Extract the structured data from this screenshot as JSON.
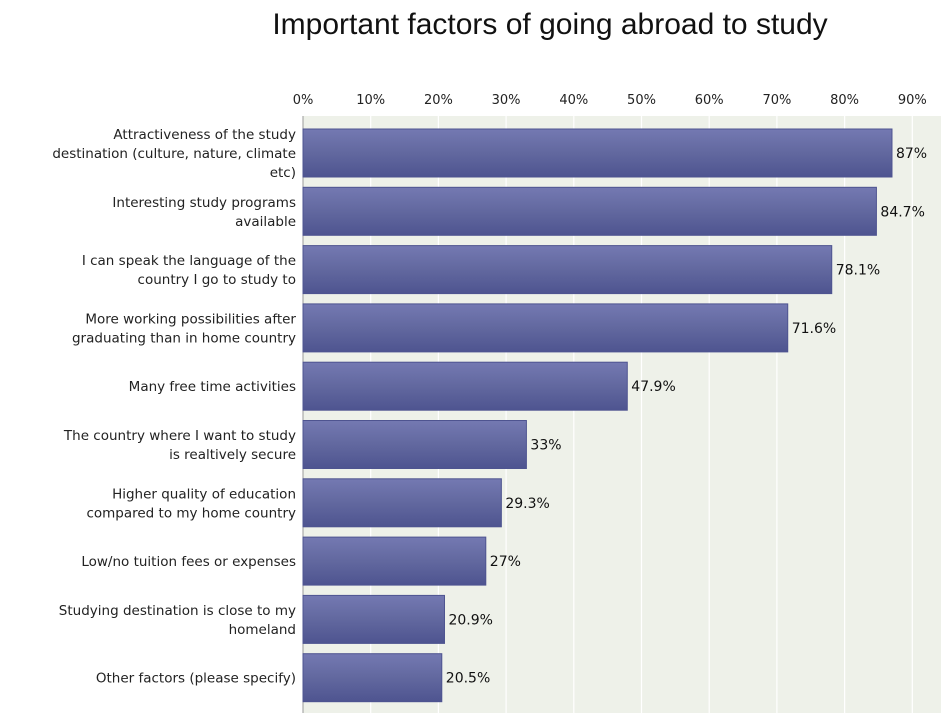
{
  "title": "Important factors of going abroad to study",
  "colors": {
    "bar": "#62689f",
    "bar_light": "#7479b2",
    "bar_dark": "#4e5490",
    "plot_bg": "#eef1e9",
    "grid": "#ffffff",
    "axis": "#9a9a9a"
  },
  "chart_data": {
    "type": "bar",
    "orientation": "horizontal",
    "title": "Important factors of going abroad to study",
    "xlabel": "",
    "ylabel": "",
    "xlim": [
      0,
      93
    ],
    "x_ticks": [
      "0%",
      "10%",
      "20%",
      "30%",
      "40%",
      "50%",
      "60%",
      "70%",
      "80%",
      "90%"
    ],
    "x_tick_values": [
      0,
      10,
      20,
      30,
      40,
      50,
      60,
      70,
      80,
      90
    ],
    "grid": true,
    "categories": [
      [
        "Attractiveness of the study",
        "destination (culture, nature, climate",
        "etc)"
      ],
      [
        "Interesting study programs",
        "available"
      ],
      [
        "I can speak the language of the",
        "country I go to study to"
      ],
      [
        "More working possibilities after",
        "graduating than in home country"
      ],
      [
        "Many free time activities"
      ],
      [
        "The country where I want to study",
        "is realtively secure"
      ],
      [
        "Higher quality of education",
        "compared to my home country"
      ],
      [
        "Low/no tuition fees or expenses"
      ],
      [
        "Studying destination is close to my",
        "homeland"
      ],
      [
        "Other factors (please specify)"
      ]
    ],
    "values": [
      87,
      84.7,
      78.1,
      71.6,
      47.9,
      33,
      29.3,
      27,
      20.9,
      20.5
    ],
    "value_labels": [
      "87%",
      "84.7%",
      "78.1%",
      "71.6%",
      "47.9%",
      "33%",
      "29.3%",
      "27%",
      "20.9%",
      "20.5%"
    ]
  }
}
